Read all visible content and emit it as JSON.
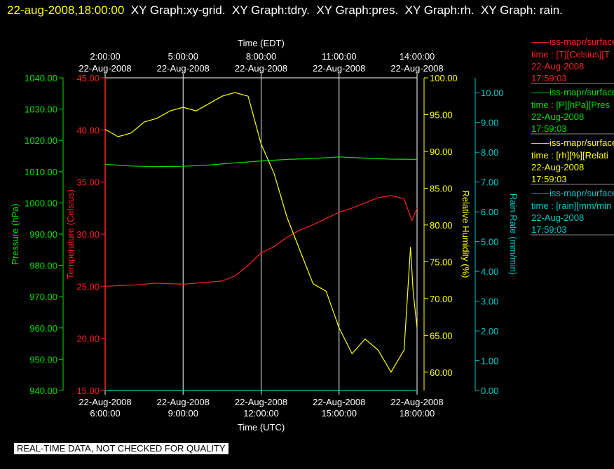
{
  "header": {
    "timestamp": "22-aug-2008,18:00:00",
    "titles": [
      "XY Graph:xy-grid.",
      "XY Graph:tdry.",
      "XY Graph:pres.",
      "XY Graph:rh.",
      "XY Graph:",
      "rain."
    ]
  },
  "colors": {
    "temperature": "#ff2020",
    "pressure": "#00e000",
    "humidity": "#ffff00",
    "rain": "#00c8c8",
    "grid": "#ffffff"
  },
  "legend": [
    {
      "line1": "——iss-mapr/surface",
      "line2": "time : [T][Celsius][T",
      "line3": "22-Aug-2008",
      "line4": "17:59:03",
      "color": "#ff2020"
    },
    {
      "line1": "——iss-mapr/surface",
      "line2": "time : [P][hPa][Pres",
      "line3": "22-Aug-2008",
      "line4": "17:59:03",
      "color": "#00e000"
    },
    {
      "line1": "——iss-mapr/surface",
      "line2": "time : [rh][%][Relati",
      "line3": "22-Aug-2008",
      "line4": "17:59:03",
      "color": "#ffff00"
    },
    {
      "line1": "——iss-mapr/surface",
      "line2": "time : [rain][mm/min",
      "line3": "22-Aug-2008",
      "line4": "17:59:03",
      "color": "#00c8c8"
    }
  ],
  "footer": "REAL-TIME DATA, NOT CHECKED FOR QUALITY",
  "chart_data": {
    "type": "line",
    "x_bottom": {
      "label": "Time (UTC)",
      "range": [
        6,
        18
      ],
      "ticks": [
        {
          "x": 6,
          "date": "22-Aug-2008",
          "time": "6:00:00"
        },
        {
          "x": 9,
          "date": "22-Aug-2008",
          "time": "9:00:00"
        },
        {
          "x": 12,
          "date": "22-Aug-2008",
          "time": "12:00:00"
        },
        {
          "x": 15,
          "date": "22-Aug-2008",
          "time": "15:00:00"
        },
        {
          "x": 18,
          "date": "22-Aug-2008",
          "time": "18:00:00"
        }
      ]
    },
    "x_top": {
      "label": "Time (EDT)",
      "ticks": [
        {
          "x": 6,
          "time": "2:00:00",
          "date": "22-Aug-2008"
        },
        {
          "x": 9,
          "time": "5:00:00",
          "date": "22-Aug-2008"
        },
        {
          "x": 12,
          "time": "8:00:00",
          "date": "22-Aug-2008"
        },
        {
          "x": 15,
          "time": "11:00:00",
          "date": "22-Aug-2008"
        },
        {
          "x": 18,
          "time": "14:00:00",
          "date": "22-Aug-2008"
        }
      ]
    },
    "axes": {
      "pressure": {
        "label": "Pressure (hPa)",
        "range": [
          940,
          1040
        ],
        "ticks": [
          "940.00",
          "950.00",
          "960.00",
          "970.00",
          "980.00",
          "990.00",
          "1000.00",
          "1010.00",
          "1020.00",
          "1030.00",
          "1040.00"
        ]
      },
      "temperature": {
        "label": "Temperature (Celsius)",
        "range": [
          15,
          45
        ],
        "ticks": [
          "15.00",
          "20.00",
          "25.00",
          "30.00",
          "35.00",
          "40.00",
          "45.00"
        ]
      },
      "humidity": {
        "label": "Relative Humidity (%)",
        "range": [
          57.5,
          100
        ],
        "ticks": [
          "60.00",
          "65.00",
          "70.00",
          "75.00",
          "80.00",
          "85.00",
          "90.00",
          "95.00",
          "100.00"
        ]
      },
      "rain": {
        "label": "Rain Rate (mm/min)",
        "range": [
          0,
          10.5
        ],
        "ticks": [
          "0.00",
          "1.00",
          "2.00",
          "3.00",
          "4.00",
          "5.00",
          "6.00",
          "7.00",
          "8.00",
          "9.00",
          "10.00"
        ]
      }
    },
    "grid": true,
    "series": [
      {
        "key": "temperature",
        "axis": "temperature",
        "x": [
          6,
          7,
          8,
          9,
          10,
          10.5,
          11,
          11.5,
          12,
          12.5,
          13,
          13.5,
          14,
          14.5,
          15,
          15.5,
          16,
          16.5,
          17,
          17.5,
          17.8,
          18
        ],
        "y": [
          25,
          25.1,
          25.3,
          25.2,
          25.4,
          25.5,
          26,
          27,
          28.2,
          28.8,
          29.7,
          30.4,
          30.9,
          31.5,
          32.1,
          32.5,
          33,
          33.5,
          33.7,
          33.4,
          31.3,
          32.5
        ]
      },
      {
        "key": "pressure",
        "axis": "pressure",
        "x": [
          6,
          7,
          8,
          9,
          10,
          11,
          12,
          13,
          14,
          15,
          16,
          17,
          18
        ],
        "y": [
          1012.3,
          1011.8,
          1011.6,
          1011.7,
          1012.1,
          1012.8,
          1013.4,
          1013.9,
          1014.2,
          1014.7,
          1014.3,
          1014,
          1013.9
        ]
      },
      {
        "key": "humidity",
        "axis": "humidity",
        "x": [
          6,
          6.5,
          7,
          7.5,
          8,
          8.5,
          9,
          9.5,
          10,
          10.5,
          11,
          11.5,
          12,
          12.5,
          13,
          13.5,
          14,
          14.5,
          15,
          15.5,
          16,
          16.5,
          17,
          17.5,
          17.75,
          17.85,
          18
        ],
        "y": [
          93,
          92,
          92.5,
          94,
          94.5,
          95.5,
          96,
          95.5,
          96.5,
          97.5,
          98,
          97.5,
          91,
          87,
          81,
          76.5,
          72,
          71,
          66,
          62.5,
          64.5,
          63,
          60,
          63,
          77,
          71,
          66
        ]
      },
      {
        "key": "rain",
        "axis": "rain",
        "x": [
          6,
          18
        ],
        "y": [
          0,
          0
        ]
      }
    ]
  }
}
